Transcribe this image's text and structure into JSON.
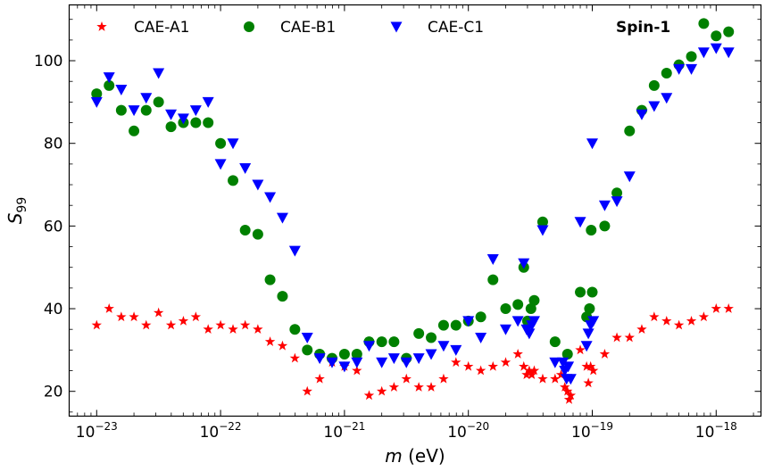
{
  "chart_data": {
    "type": "scatter",
    "title": "",
    "annotation": "Spin-1",
    "xlabel": {
      "prefix": "m",
      "suffix": " (eV)"
    },
    "ylabel": {
      "main": "S",
      "sub": "99"
    },
    "xscale": "log",
    "xlim": [
      6e-24,
      2.3e-18
    ],
    "ylim": [
      14,
      113.5
    ],
    "xticks": [
      {
        "value": 1e-23,
        "base": "10",
        "exp": "−23"
      },
      {
        "value": 1e-22,
        "base": "10",
        "exp": "−22"
      },
      {
        "value": 1e-21,
        "base": "10",
        "exp": "−21"
      },
      {
        "value": 1e-20,
        "base": "10",
        "exp": "−20"
      },
      {
        "value": 1e-19,
        "base": "10",
        "exp": "−19"
      },
      {
        "value": 1e-18,
        "base": "10",
        "exp": "−18"
      }
    ],
    "yticks": [
      20,
      40,
      60,
      80,
      100
    ],
    "legend_placement": "top",
    "series": [
      {
        "name": "CAE-A1",
        "marker": "star",
        "color": "#ff0000",
        "points": [
          [
            1e-23,
            36
          ],
          [
            1.26e-23,
            40
          ],
          [
            1.58e-23,
            38
          ],
          [
            2e-23,
            38
          ],
          [
            2.51e-23,
            36
          ],
          [
            3.16e-23,
            39
          ],
          [
            3.98e-23,
            36
          ],
          [
            5.01e-23,
            37
          ],
          [
            6.31e-23,
            38
          ],
          [
            7.94e-23,
            35
          ],
          [
            1e-22,
            36
          ],
          [
            1.26e-22,
            35
          ],
          [
            1.58e-22,
            36
          ],
          [
            2e-22,
            35
          ],
          [
            2.51e-22,
            32
          ],
          [
            3.16e-22,
            31
          ],
          [
            3.98e-22,
            28
          ],
          [
            5.01e-22,
            20
          ],
          [
            6.31e-22,
            23
          ],
          [
            7.94e-22,
            27
          ],
          [
            1e-21,
            26
          ],
          [
            1.26e-21,
            25
          ],
          [
            1.58e-21,
            19
          ],
          [
            2e-21,
            20
          ],
          [
            2.51e-21,
            21
          ],
          [
            3.16e-21,
            23
          ],
          [
            3.98e-21,
            21
          ],
          [
            5.01e-21,
            21
          ],
          [
            6.31e-21,
            23
          ],
          [
            7.94e-21,
            27
          ],
          [
            1e-20,
            26
          ],
          [
            1.26e-20,
            25
          ],
          [
            1.58e-20,
            26
          ],
          [
            2e-20,
            27
          ],
          [
            2.51e-20,
            29
          ],
          [
            2.8e-20,
            26
          ],
          [
            2.95e-20,
            24
          ],
          [
            3.1e-20,
            25
          ],
          [
            3.25e-20,
            24
          ],
          [
            3.4e-20,
            25
          ],
          [
            3.98e-20,
            23
          ],
          [
            5.01e-20,
            23
          ],
          [
            5.6e-20,
            24
          ],
          [
            6e-20,
            21
          ],
          [
            6.3e-20,
            20
          ],
          [
            6.5e-20,
            18
          ],
          [
            6.7e-20,
            19
          ],
          [
            8e-20,
            30
          ],
          [
            9e-20,
            26
          ],
          [
            9.3e-20,
            22
          ],
          [
            9.7e-20,
            26
          ],
          [
            1.02e-19,
            25
          ],
          [
            1.26e-19,
            29
          ],
          [
            1.58e-19,
            33
          ],
          [
            2e-19,
            33
          ],
          [
            2.51e-19,
            35
          ],
          [
            3.16e-19,
            38
          ],
          [
            3.98e-19,
            37
          ],
          [
            5.01e-19,
            36
          ],
          [
            6.31e-19,
            37
          ],
          [
            7.94e-19,
            38
          ],
          [
            1e-18,
            40
          ],
          [
            1.26e-18,
            40
          ]
        ]
      },
      {
        "name": "CAE-B1",
        "marker": "circle",
        "color": "#008000",
        "points": [
          [
            1e-23,
            92
          ],
          [
            1.26e-23,
            94
          ],
          [
            1.58e-23,
            88
          ],
          [
            2e-23,
            83
          ],
          [
            2.51e-23,
            88
          ],
          [
            3.16e-23,
            90
          ],
          [
            3.98e-23,
            84
          ],
          [
            5.01e-23,
            85
          ],
          [
            6.31e-23,
            85
          ],
          [
            7.94e-23,
            85
          ],
          [
            1e-22,
            80
          ],
          [
            1.26e-22,
            71
          ],
          [
            1.58e-22,
            59
          ],
          [
            2e-22,
            58
          ],
          [
            2.51e-22,
            47
          ],
          [
            3.16e-22,
            43
          ],
          [
            3.98e-22,
            35
          ],
          [
            5.01e-22,
            30
          ],
          [
            6.31e-22,
            29
          ],
          [
            7.94e-22,
            28
          ],
          [
            1e-21,
            29
          ],
          [
            1.26e-21,
            29
          ],
          [
            1.58e-21,
            32
          ],
          [
            2e-21,
            32
          ],
          [
            2.51e-21,
            32
          ],
          [
            3.16e-21,
            28
          ],
          [
            3.98e-21,
            34
          ],
          [
            5.01e-21,
            33
          ],
          [
            6.31e-21,
            36
          ],
          [
            7.94e-21,
            36
          ],
          [
            1e-20,
            37
          ],
          [
            1.26e-20,
            38
          ],
          [
            1.58e-20,
            47
          ],
          [
            2e-20,
            40
          ],
          [
            2.51e-20,
            41
          ],
          [
            2.8e-20,
            50
          ],
          [
            3e-20,
            37
          ],
          [
            3.2e-20,
            40
          ],
          [
            3.4e-20,
            42
          ],
          [
            3.98e-20,
            61
          ],
          [
            5.01e-20,
            32
          ],
          [
            6.31e-20,
            29
          ],
          [
            8e-20,
            44
          ],
          [
            9e-20,
            38
          ],
          [
            9.5e-20,
            40
          ],
          [
            9.8e-20,
            59
          ],
          [
            1e-19,
            44
          ],
          [
            1.26e-19,
            60
          ],
          [
            1.58e-19,
            68
          ],
          [
            2e-19,
            83
          ],
          [
            2.51e-19,
            88
          ],
          [
            3.16e-19,
            94
          ],
          [
            3.98e-19,
            97
          ],
          [
            5.01e-19,
            99
          ],
          [
            6.31e-19,
            101
          ],
          [
            7.94e-19,
            109
          ],
          [
            1e-18,
            106
          ],
          [
            1.26e-18,
            107
          ]
        ]
      },
      {
        "name": "CAE-C1",
        "marker": "triangle-down",
        "color": "#0000ff",
        "points": [
          [
            1e-23,
            90
          ],
          [
            1.26e-23,
            96
          ],
          [
            1.58e-23,
            93
          ],
          [
            2e-23,
            88
          ],
          [
            2.51e-23,
            91
          ],
          [
            3.16e-23,
            97
          ],
          [
            3.98e-23,
            87
          ],
          [
            5.01e-23,
            86
          ],
          [
            6.31e-23,
            88
          ],
          [
            7.94e-23,
            90
          ],
          [
            1e-22,
            75
          ],
          [
            1.26e-22,
            80
          ],
          [
            1.58e-22,
            74
          ],
          [
            2e-22,
            70
          ],
          [
            2.51e-22,
            67
          ],
          [
            3.16e-22,
            62
          ],
          [
            3.98e-22,
            54
          ],
          [
            5.01e-22,
            33
          ],
          [
            6.31e-22,
            28
          ],
          [
            7.94e-22,
            27
          ],
          [
            1e-21,
            26
          ],
          [
            1.26e-21,
            27
          ],
          [
            1.58e-21,
            31
          ],
          [
            2e-21,
            27
          ],
          [
            2.51e-21,
            28
          ],
          [
            3.16e-21,
            27
          ],
          [
            3.98e-21,
            28
          ],
          [
            5.01e-21,
            29
          ],
          [
            6.31e-21,
            31
          ],
          [
            7.94e-21,
            30
          ],
          [
            1e-20,
            37
          ],
          [
            1.26e-20,
            33
          ],
          [
            1.58e-20,
            52
          ],
          [
            2e-20,
            35
          ],
          [
            2.51e-20,
            37
          ],
          [
            2.8e-20,
            51
          ],
          [
            2.95e-20,
            35
          ],
          [
            3.1e-20,
            34
          ],
          [
            3.25e-20,
            36
          ],
          [
            3.4e-20,
            37
          ],
          [
            3.98e-20,
            59
          ],
          [
            5.01e-20,
            27
          ],
          [
            5.8e-20,
            27
          ],
          [
            6e-20,
            25
          ],
          [
            6.2e-20,
            23
          ],
          [
            6.4e-20,
            26
          ],
          [
            6.7e-20,
            23
          ],
          [
            8e-20,
            61
          ],
          [
            9e-20,
            31
          ],
          [
            9.3e-20,
            34
          ],
          [
            9.7e-20,
            36
          ],
          [
            1e-19,
            80
          ],
          [
            1.02e-19,
            37
          ],
          [
            1.26e-19,
            65
          ],
          [
            1.58e-19,
            66
          ],
          [
            2e-19,
            72
          ],
          [
            2.51e-19,
            87
          ],
          [
            3.16e-19,
            89
          ],
          [
            3.98e-19,
            91
          ],
          [
            5.01e-19,
            98
          ],
          [
            6.31e-19,
            98
          ],
          [
            7.94e-19,
            102
          ],
          [
            1e-18,
            103
          ],
          [
            1.26e-18,
            102
          ]
        ]
      }
    ]
  }
}
